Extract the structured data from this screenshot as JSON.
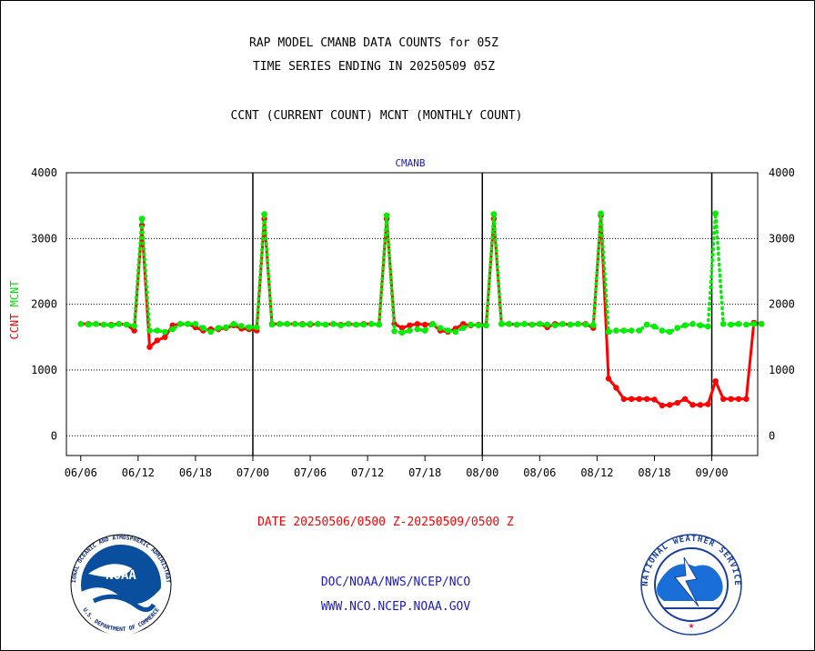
{
  "chart_data": {
    "type": "line",
    "title": "RAP MODEL CMANB DATA COUNTS for 05Z",
    "subtitle": "TIME SERIES ENDING IN 20250509 05Z",
    "series_caption": "CCNT (CURRENT COUNT) MCNT (MONTHLY COUNT)",
    "panel_label": "CMANB",
    "ylabel_ccnt": "CCNT",
    "ylabel_mcnt": "MCNT",
    "ylim": [
      -300,
      4000
    ],
    "yticks": [
      0,
      1000,
      2000,
      3000,
      4000
    ],
    "ytick_labels": [
      "0",
      "1000",
      "2000",
      "3000",
      "4000"
    ],
    "xlim": [
      -0.5,
      23.6
    ],
    "xtick_positions": [
      0,
      2,
      4,
      6,
      8,
      10,
      12,
      14,
      16,
      18,
      20,
      22
    ],
    "xtick_labels": [
      "06/06",
      "06/12",
      "06/18",
      "07/00",
      "07/06",
      "07/12",
      "07/18",
      "08/00",
      "08/06",
      "08/12",
      "08/18",
      "09/00"
    ],
    "day_boundaries": [
      6,
      14,
      22
    ],
    "grid": true,
    "series": [
      {
        "name": "CCNT",
        "color": "#ff0000",
        "values": [
          1700,
          1700,
          1700,
          1690,
          1690,
          1700,
          1690,
          1600,
          3200,
          1350,
          1450,
          1500,
          1680,
          1700,
          1700,
          1650,
          1600,
          1620,
          1620,
          1640,
          1680,
          1630,
          1620,
          1600,
          3300,
          1700,
          1700,
          1700,
          1700,
          1700,
          1690,
          1700,
          1690,
          1700,
          1690,
          1700,
          1690,
          1700,
          1700,
          1690,
          3300,
          1700,
          1640,
          1680,
          1700,
          1690,
          1700,
          1600,
          1580,
          1630,
          1700,
          1680,
          1690,
          1680,
          3300,
          1700,
          1700,
          1690,
          1700,
          1690,
          1700,
          1650,
          1700,
          1700,
          1690,
          1700,
          1700,
          1640,
          3350,
          870,
          730,
          560,
          560,
          560,
          560,
          550,
          460,
          470,
          500,
          560,
          470,
          470,
          480,
          830,
          560,
          560,
          560,
          560,
          1720,
          1700
        ]
      },
      {
        "name": "MCNT",
        "color": "#00ee00",
        "values": [
          1700,
          1690,
          1700,
          1690,
          1680,
          1700,
          1690,
          1670,
          3300,
          1600,
          1600,
          1580,
          1620,
          1700,
          1700,
          1700,
          1640,
          1580,
          1640,
          1650,
          1700,
          1670,
          1650,
          1650,
          3370,
          1690,
          1700,
          1700,
          1700,
          1690,
          1700,
          1700,
          1690,
          1700,
          1680,
          1700,
          1690,
          1690,
          1700,
          1690,
          3350,
          1590,
          1570,
          1600,
          1620,
          1600,
          1700,
          1640,
          1600,
          1580,
          1640,
          1690,
          1680,
          1680,
          3370,
          1700,
          1700,
          1690,
          1700,
          1690,
          1700,
          1690,
          1680,
          1700,
          1690,
          1700,
          1690,
          1680,
          3380,
          1580,
          1600,
          1600,
          1600,
          1600,
          1690,
          1660,
          1600,
          1580,
          1640,
          1680,
          1700,
          1680,
          1660,
          3380,
          1700,
          1690,
          1700,
          1690,
          1700,
          1700
        ]
      }
    ]
  },
  "date_range": "DATE 20250506/0500 Z-20250509/0500 Z",
  "footer_line1": "DOC/NOAA/NWS/NCEP/NCO",
  "footer_line2": "WWW.NCO.NCEP.NOAA.GOV",
  "noaa_logo": {
    "name": "NOAA",
    "ring_text": "NATIONAL OCEANIC AND ATMOSPHERIC ADMINISTRATION",
    "bottom_text": "U.S. DEPARTMENT OF COMMERCE"
  },
  "nws_logo": {
    "ring_text": "NATIONAL WEATHER SERVICE"
  },
  "colors": {
    "ccnt": "#ff0000",
    "mcnt": "#00ee00",
    "footer_text": "#1a1acc",
    "panel_label": "#1a1acc",
    "date_text": "#ff0000"
  }
}
